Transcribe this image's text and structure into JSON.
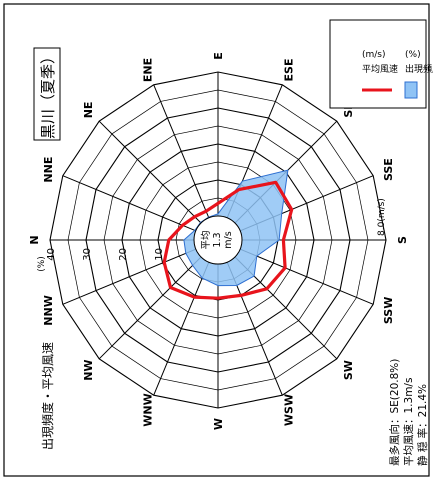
{
  "chart_data": {
    "type": "radar",
    "title": "黒川（夏季）",
    "subtitle": "出現頻度・平均風速",
    "freq_unit": "(%)",
    "speed_unit": "8.0(m/s)",
    "center_label": [
      "平均",
      "1.3",
      "m/s"
    ],
    "rings": [
      10,
      20,
      30,
      40
    ],
    "ring_labels": [
      "10",
      "20",
      "30",
      "40"
    ],
    "directions": [
      "N",
      "NNE",
      "NE",
      "ENE",
      "E",
      "ESE",
      "SE",
      "SSE",
      "S",
      "SSW",
      "SW",
      "WSW",
      "W",
      "WNW",
      "NW",
      "NNW"
    ],
    "series": [
      {
        "name": "出現頻度",
        "unit": "(%)",
        "values": [
          2.8,
          0.3,
          0.2,
          0.2,
          0.6,
          11.0,
          20.8,
          12.5,
          10.3,
          5.0,
          7.5,
          7.0,
          6.0,
          4.8,
          3.3,
          3.0
        ]
      },
      {
        "name": "平均風速",
        "unit": "(m/s)",
        "values": [
          1.4,
          0.8,
          0.5,
          0.4,
          0.7,
          1.7,
          3.2,
          3.1,
          2.3,
          2.7,
          2.5,
          2.0,
          1.9,
          2.1,
          2.4,
          1.9
        ]
      }
    ],
    "legend": {
      "freq": "出現頻度",
      "freq_unit": "(%)",
      "speed": "平均風速",
      "speed_unit": "(m/s)",
      "position": "top-right"
    },
    "summary": [
      "最多風向：SE(20.8%)",
      "平均風速：1.3m/s",
      "静 穏 率：21.4%"
    ],
    "colors": {
      "freq_fill": "#8fc3f5",
      "freq_stroke": "#2e6fd1",
      "speed_line": "#e8141c",
      "grid": "#000000"
    }
  }
}
